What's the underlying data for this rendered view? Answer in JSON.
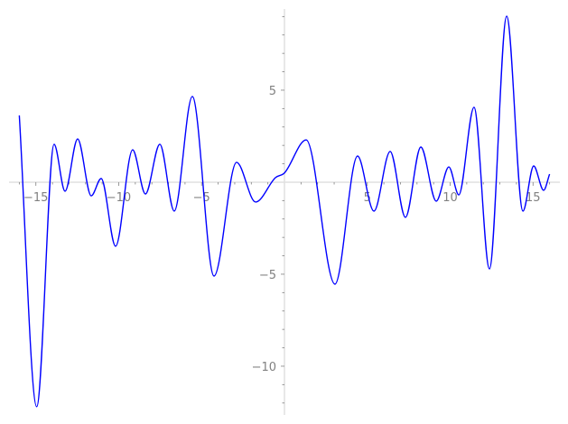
{
  "chart_data": {
    "type": "line",
    "title": "",
    "xlabel": "",
    "ylabel": "",
    "xlim": [
      -16.62,
      16.62
    ],
    "ylim": [
      -12.65,
      9.41
    ],
    "grid": false,
    "axes_through_origin": true,
    "x_ticks": [
      -15,
      -10,
      -5,
      5,
      10,
      15
    ],
    "x_tick_labels": [
      "−15",
      "−10",
      "−5",
      "5",
      "10",
      "15"
    ],
    "y_ticks": [
      5,
      -5,
      -10
    ],
    "y_tick_labels": [
      "5",
      "−5",
      "−10"
    ],
    "minor_tick_step": 1,
    "colors": {
      "line": "#0000ff",
      "axis": "#e0e0e0",
      "tick": "#808080",
      "label": "#808080"
    },
    "series": [
      {
        "x": [
          -16.0,
          -14.95,
          -13.9,
          -13.24,
          -12.48,
          -11.66,
          -11.06,
          -10.19,
          -9.16,
          -8.39,
          -7.52,
          -6.65,
          -5.56,
          -4.25,
          -2.89,
          -1.74,
          -0.54,
          0.0,
          1.31,
          3.05,
          4.41,
          5.4,
          6.38,
          7.3,
          8.23,
          9.16,
          9.92,
          10.52,
          11.44,
          12.37,
          13.41,
          14.39,
          15.04,
          15.64,
          16.0
        ],
        "y": [
          3.63,
          -12.2,
          2.06,
          -0.49,
          2.35,
          -0.74,
          0.2,
          -3.48,
          1.76,
          -0.64,
          2.06,
          -1.57,
          4.66,
          -5.1,
          1.08,
          -1.08,
          0.25,
          0.5,
          2.3,
          -5.54,
          1.42,
          -1.57,
          1.67,
          -1.91,
          1.91,
          -1.03,
          0.83,
          -0.69,
          4.07,
          -4.71,
          9.02,
          -1.57,
          0.88,
          -0.44,
          0.44
        ]
      }
    ]
  }
}
